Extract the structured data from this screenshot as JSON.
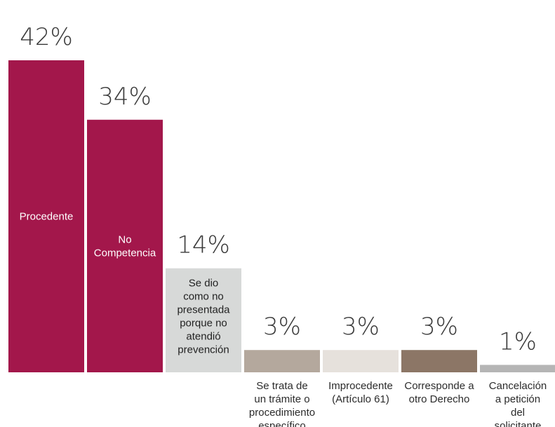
{
  "chart_data": {
    "type": "bar",
    "title": "",
    "xlabel": "",
    "ylabel": "",
    "ylim": [
      0,
      42
    ],
    "grid": false,
    "categories": [
      "Procedente",
      "No Competencia",
      "Se dio como no presentada porque no atendió prevención",
      "Se trata de un trámite o procedimiento específico",
      "Improcedente (Artículo 61)",
      "Corresponde a otro Derecho",
      "Cancelación a petición del solicitante"
    ],
    "values": [
      42,
      34,
      14,
      3,
      3,
      3,
      1
    ],
    "data_labels": [
      "42%",
      "34%",
      "14%",
      "3%",
      "3%",
      "3%",
      "1%"
    ],
    "category_label_lines": [
      [
        "Procedente"
      ],
      [
        "No",
        "Competencia"
      ],
      [
        "Se dio",
        "como no",
        "presentada",
        "porque no",
        "atendió",
        "prevención"
      ],
      [
        "Se trata de",
        "un trámite o",
        "procedimiento",
        "específico"
      ],
      [
        "Improcedente",
        "(Artículo 61)"
      ],
      [
        "Corresponde a",
        "otro Derecho"
      ],
      [
        "Cancelación",
        "a petición",
        "del",
        "solicitante"
      ]
    ],
    "category_label_placement": [
      "inside",
      "inside",
      "inside",
      "below",
      "below",
      "below",
      "below"
    ],
    "colors": [
      "#a3174b",
      "#a3174b",
      "#d7d9d8",
      "#b4a89d",
      "#e6e1dc",
      "#8c7666",
      "#b5b5b5"
    ],
    "inside_label_colors": [
      "#ffffff",
      "#ffffff",
      "#222222",
      "#222222",
      "#222222",
      "#222222",
      "#222222"
    ]
  }
}
